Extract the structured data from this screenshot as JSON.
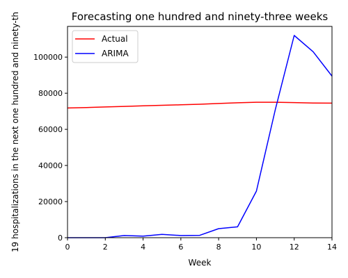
{
  "chart_data": {
    "type": "line",
    "title": "Forecasting one hundred and ninety-three weeks",
    "xlabel": "Week",
    "ylabel": "19 hospitalizations in the next one hundred and ninety-th",
    "xlim": [
      0,
      14
    ],
    "ylim": [
      0,
      117000
    ],
    "x_ticks": [
      0,
      2,
      4,
      6,
      8,
      10,
      12,
      14
    ],
    "y_ticks": [
      0,
      20000,
      40000,
      60000,
      80000,
      100000
    ],
    "grid": false,
    "legend_position": "upper-left",
    "x": [
      0,
      1,
      2,
      3,
      4,
      5,
      6,
      7,
      8,
      9,
      10,
      11,
      12,
      13,
      14
    ],
    "series": [
      {
        "name": "Actual",
        "color": "#ff0000",
        "values": [
          71800,
          72100,
          72400,
          72700,
          73000,
          73300,
          73600,
          73900,
          74300,
          74700,
          75000,
          75000,
          74800,
          74600,
          74500
        ]
      },
      {
        "name": "ARIMA",
        "color": "#0000ff",
        "values": [
          0,
          0,
          0,
          1200,
          900,
          1800,
          1200,
          1300,
          5000,
          6000,
          25800,
          71000,
          112000,
          103000,
          89500
        ]
      }
    ]
  }
}
